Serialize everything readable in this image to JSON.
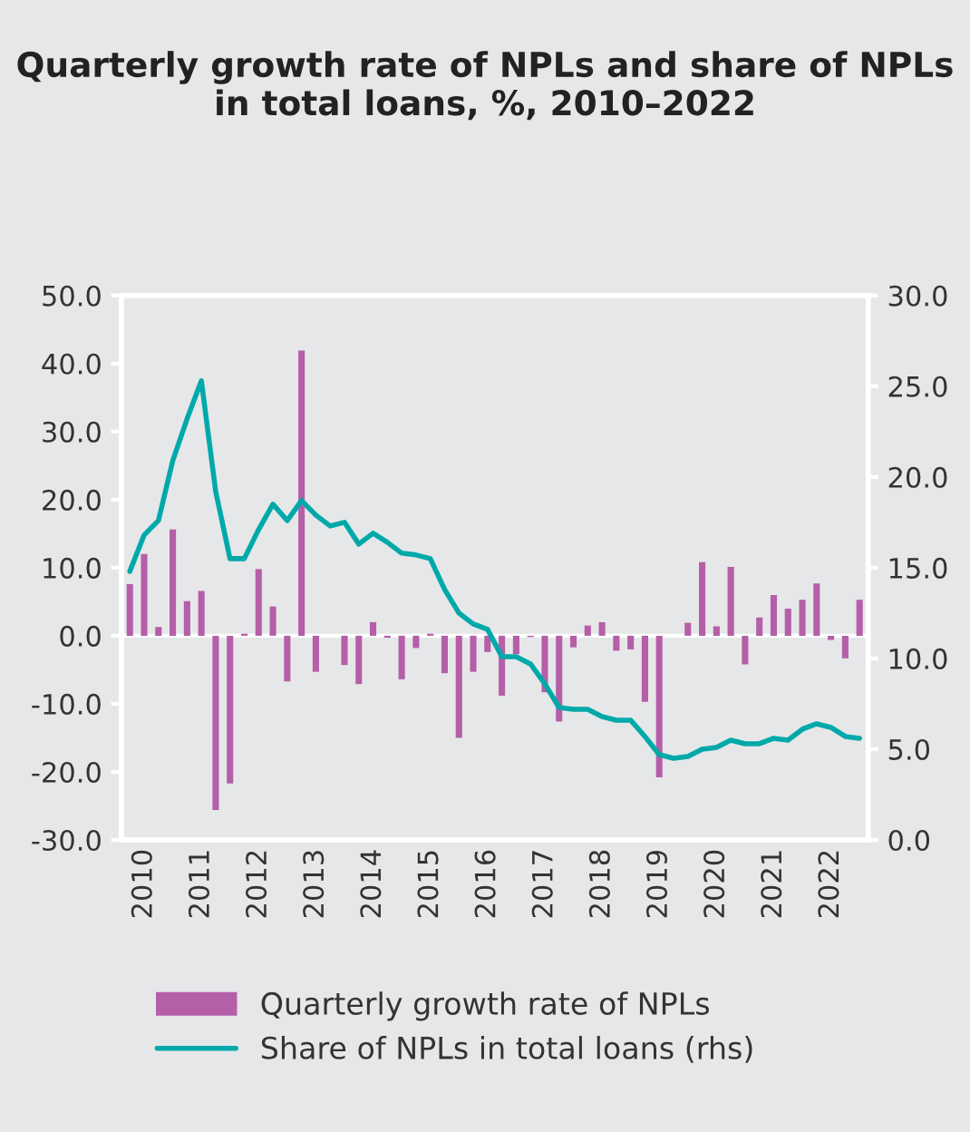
{
  "chart_data": {
    "type": "bar",
    "title": "Quarterly growth rate of NPLs and share of NPLs in total loans, %, 2010–2022",
    "categories": [
      null,
      "2010",
      null,
      null,
      null,
      "2011",
      null,
      null,
      null,
      "2012",
      null,
      null,
      null,
      "2013",
      null,
      null,
      null,
      "2014",
      null,
      null,
      null,
      "2015",
      null,
      null,
      null,
      "2016",
      null,
      null,
      null,
      "2017",
      null,
      null,
      null,
      "2018",
      null,
      null,
      null,
      "2019",
      null,
      null,
      null,
      "2020",
      null,
      null,
      null,
      "2021",
      null,
      null,
      null,
      "2022",
      null,
      null
    ],
    "series": [
      {
        "name": "Quarterly growth rate of NPLs",
        "color": "#b55fa8",
        "values": [
          7.6,
          12.0,
          1.3,
          15.6,
          5.1,
          6.6,
          -25.6,
          -21.7,
          0.3,
          9.8,
          4.3,
          -6.7,
          41.9,
          -5.3,
          0.0,
          -4.3,
          -7.1,
          2.0,
          -0.3,
          -6.4,
          -1.8,
          0.3,
          -5.5,
          -15.0,
          -5.3,
          -2.4,
          -8.8,
          -2.7,
          -0.2,
          -8.3,
          -12.6,
          -1.7,
          1.5,
          2.0,
          -2.2,
          -2.0,
          -9.7,
          -20.8,
          0.0,
          1.9,
          10.8,
          1.4,
          10.1,
          -4.2,
          2.7,
          6.0,
          4.0,
          5.3,
          7.7,
          -0.6,
          -3.3,
          5.3
        ]
      },
      {
        "name": "Share of NPLs in total loans (rhs)",
        "type": "line",
        "axis": "y2",
        "color": "#00a9a9",
        "values": [
          14.8,
          16.8,
          17.6,
          20.9,
          23.2,
          25.3,
          19.2,
          15.5,
          15.5,
          17.1,
          18.5,
          17.6,
          18.7,
          17.9,
          17.3,
          17.5,
          16.3,
          16.9,
          16.4,
          15.8,
          15.7,
          15.5,
          13.8,
          12.5,
          11.9,
          11.6,
          10.1,
          10.1,
          9.7,
          8.6,
          7.3,
          7.2,
          7.2,
          6.8,
          6.6,
          6.6,
          5.7,
          4.7,
          4.5,
          4.6,
          5.0,
          5.1,
          5.5,
          5.3,
          5.3,
          5.6,
          5.5,
          6.1,
          6.4,
          6.2,
          5.7,
          5.6
        ]
      }
    ],
    "ylim": [
      -30,
      50
    ],
    "yticks": [
      {
        "value": -30,
        "label": "-30.0"
      },
      {
        "value": -20,
        "label": "-20.0"
      },
      {
        "value": -10,
        "label": "-10.0"
      },
      {
        "value": 0,
        "label": "0.0"
      },
      {
        "value": 10,
        "label": "10.0"
      },
      {
        "value": 20,
        "label": "20.0"
      },
      {
        "value": 30,
        "label": "30.0"
      },
      {
        "value": 40,
        "label": "40.0"
      },
      {
        "value": 50,
        "label": "50.0"
      }
    ],
    "y2lim": [
      0,
      30
    ],
    "y2ticks": [
      {
        "value": 0,
        "label": "0.0"
      },
      {
        "value": 5,
        "label": "5.0"
      },
      {
        "value": 10,
        "label": "10.0"
      },
      {
        "value": 15,
        "label": "15.0"
      },
      {
        "value": 20,
        "label": "20.0"
      },
      {
        "value": 25,
        "label": "25.0"
      },
      {
        "value": 30,
        "label": "30.0"
      }
    ],
    "ref_lines": [
      {
        "axis": "y",
        "value": 0,
        "color": "#ffffff"
      }
    ],
    "grid": false,
    "legend": "bottom"
  }
}
